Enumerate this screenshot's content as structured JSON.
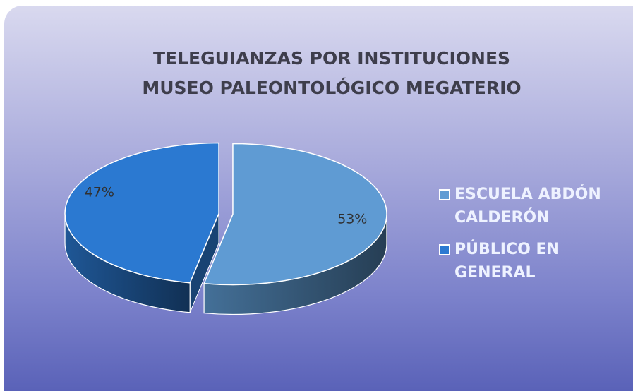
{
  "chart_data": {
    "type": "pie",
    "title": [
      "TELEGUIANZAS POR INSTITUCIONES",
      "MUSEO PALEONTOLÓGICO MEGATERIO"
    ],
    "categories": [
      "ESCUELA ABDÓN CALDERÓN",
      "PÚBLICO EN GENERAL"
    ],
    "values": [
      53,
      47
    ],
    "value_labels": [
      "53%",
      "47%"
    ],
    "colors": [
      "#5f9bd3",
      "#2b79d1"
    ],
    "legend": "right"
  }
}
